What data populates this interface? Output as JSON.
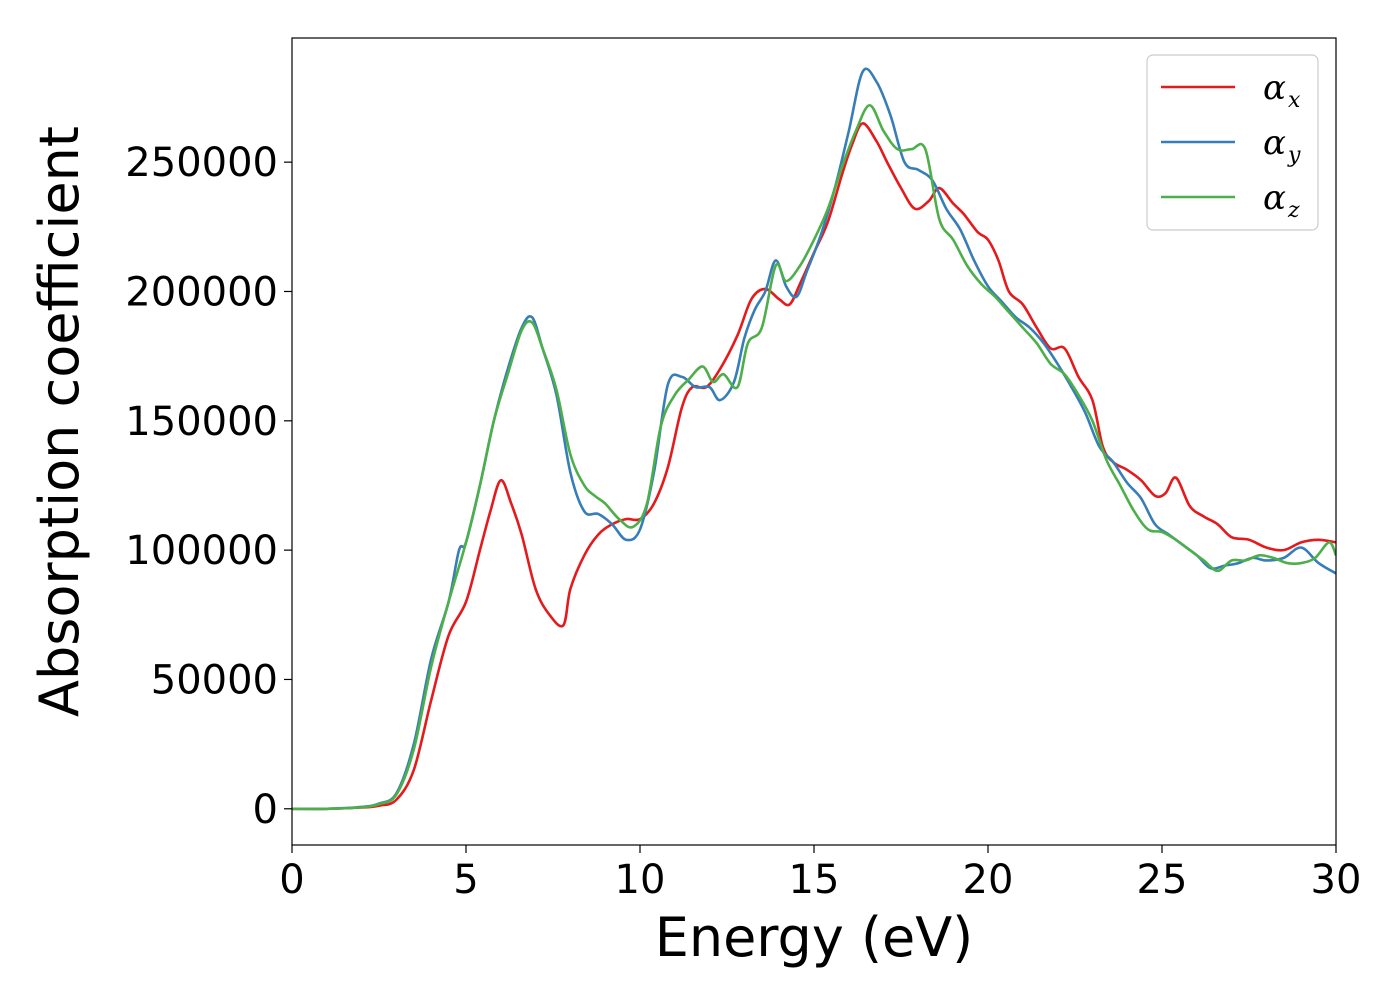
{
  "chart_data": {
    "type": "line",
    "title": "",
    "xlabel": "Energy (eV)",
    "ylabel": "Absorption coefficient",
    "xlim": [
      0,
      30
    ],
    "ylim": [
      -14000,
      298000
    ],
    "xticks": [
      0,
      5,
      10,
      15,
      20,
      25,
      30
    ],
    "yticks": [
      0,
      50000,
      100000,
      150000,
      200000,
      250000
    ],
    "grid": false,
    "legend_position": "top-right",
    "series": [
      {
        "name": "α",
        "subscript": "x",
        "color": "#e41a1c",
        "points": [
          [
            0,
            0
          ],
          [
            1,
            0
          ],
          [
            2,
            500
          ],
          [
            2.5,
            1200
          ],
          [
            3,
            3500
          ],
          [
            3.5,
            15000
          ],
          [
            4,
            42000
          ],
          [
            4.5,
            67000
          ],
          [
            5,
            80000
          ],
          [
            5.4,
            100000
          ],
          [
            5.7,
            115000
          ],
          [
            6,
            127000
          ],
          [
            6.3,
            118000
          ],
          [
            6.6,
            106000
          ],
          [
            7,
            85000
          ],
          [
            7.4,
            75000
          ],
          [
            7.8,
            71000
          ],
          [
            8,
            85000
          ],
          [
            8.4,
            98000
          ],
          [
            8.8,
            106000
          ],
          [
            9.2,
            110000
          ],
          [
            9.6,
            112000
          ],
          [
            10,
            112000
          ],
          [
            10.4,
            118000
          ],
          [
            10.8,
            132000
          ],
          [
            11.2,
            155000
          ],
          [
            11.5,
            163000
          ],
          [
            11.9,
            163000
          ],
          [
            12.3,
            170000
          ],
          [
            12.8,
            183000
          ],
          [
            13.2,
            197000
          ],
          [
            13.6,
            201000
          ],
          [
            14,
            197000
          ],
          [
            14.3,
            195000
          ],
          [
            14.6,
            203000
          ],
          [
            15,
            215000
          ],
          [
            15.4,
            227000
          ],
          [
            15.8,
            245000
          ],
          [
            16.1,
            257000
          ],
          [
            16.4,
            265000
          ],
          [
            16.8,
            258000
          ],
          [
            17.1,
            250000
          ],
          [
            17.5,
            240000
          ],
          [
            17.9,
            232000
          ],
          [
            18.3,
            235000
          ],
          [
            18.6,
            240000
          ],
          [
            19,
            234000
          ],
          [
            19.3,
            230000
          ],
          [
            19.7,
            223000
          ],
          [
            20,
            220000
          ],
          [
            20.3,
            212000
          ],
          [
            20.6,
            200000
          ],
          [
            21,
            195000
          ],
          [
            21.4,
            186000
          ],
          [
            21.8,
            178000
          ],
          [
            22.2,
            178000
          ],
          [
            22.6,
            167000
          ],
          [
            23,
            158000
          ],
          [
            23.3,
            140000
          ],
          [
            23.6,
            134000
          ],
          [
            24,
            131000
          ],
          [
            24.4,
            127000
          ],
          [
            24.8,
            121000
          ],
          [
            25.1,
            122000
          ],
          [
            25.4,
            128000
          ],
          [
            25.8,
            117000
          ],
          [
            26.2,
            113000
          ],
          [
            26.6,
            110000
          ],
          [
            27,
            105000
          ],
          [
            27.5,
            104000
          ],
          [
            28,
            101000
          ],
          [
            28.5,
            100000
          ],
          [
            29,
            103000
          ],
          [
            29.5,
            104000
          ],
          [
            30,
            103000
          ]
        ]
      },
      {
        "name": "α",
        "subscript": "y",
        "color": "#377eb8",
        "points": [
          [
            0,
            0
          ],
          [
            1,
            0
          ],
          [
            2,
            700
          ],
          [
            2.5,
            2000
          ],
          [
            3,
            6000
          ],
          [
            3.5,
            25000
          ],
          [
            4,
            58000
          ],
          [
            4.5,
            80000
          ],
          [
            4.8,
            100000
          ],
          [
            5,
            103000
          ],
          [
            5.4,
            125000
          ],
          [
            5.8,
            150000
          ],
          [
            6.2,
            170000
          ],
          [
            6.6,
            186000
          ],
          [
            6.9,
            190000
          ],
          [
            7.2,
            178000
          ],
          [
            7.6,
            160000
          ],
          [
            8,
            130000
          ],
          [
            8.4,
            115000
          ],
          [
            8.8,
            114000
          ],
          [
            9.2,
            110000
          ],
          [
            9.6,
            104000
          ],
          [
            10,
            108000
          ],
          [
            10.4,
            130000
          ],
          [
            10.8,
            164000
          ],
          [
            11.2,
            167000
          ],
          [
            11.6,
            163000
          ],
          [
            12,
            163000
          ],
          [
            12.3,
            158000
          ],
          [
            12.7,
            165000
          ],
          [
            13,
            182000
          ],
          [
            13.3,
            193000
          ],
          [
            13.6,
            200000
          ],
          [
            13.9,
            212000
          ],
          [
            14.2,
            202000
          ],
          [
            14.5,
            198000
          ],
          [
            14.8,
            208000
          ],
          [
            15.2,
            222000
          ],
          [
            15.6,
            240000
          ],
          [
            16,
            262000
          ],
          [
            16.4,
            285000
          ],
          [
            16.8,
            281000
          ],
          [
            17.2,
            268000
          ],
          [
            17.6,
            250000
          ],
          [
            18,
            247000
          ],
          [
            18.4,
            243000
          ],
          [
            18.8,
            232000
          ],
          [
            19.2,
            224000
          ],
          [
            19.6,
            212000
          ],
          [
            20,
            202000
          ],
          [
            20.4,
            196000
          ],
          [
            20.8,
            190000
          ],
          [
            21.2,
            186000
          ],
          [
            21.6,
            180000
          ],
          [
            22,
            172000
          ],
          [
            22.4,
            163000
          ],
          [
            22.8,
            153000
          ],
          [
            23.2,
            140000
          ],
          [
            23.6,
            134000
          ],
          [
            24,
            126000
          ],
          [
            24.4,
            120000
          ],
          [
            24.8,
            110000
          ],
          [
            25.2,
            106000
          ],
          [
            25.6,
            102000
          ],
          [
            26,
            98000
          ],
          [
            26.4,
            93000
          ],
          [
            26.8,
            94000
          ],
          [
            27.2,
            95000
          ],
          [
            27.6,
            97000
          ],
          [
            28,
            96000
          ],
          [
            28.5,
            97000
          ],
          [
            29,
            101000
          ],
          [
            29.5,
            95000
          ],
          [
            30,
            91000
          ]
        ]
      },
      {
        "name": "α",
        "subscript": "z",
        "color": "#4daf4a",
        "points": [
          [
            0,
            0
          ],
          [
            1,
            0
          ],
          [
            2,
            600
          ],
          [
            2.5,
            1800
          ],
          [
            3,
            5500
          ],
          [
            3.5,
            23000
          ],
          [
            4,
            55000
          ],
          [
            4.5,
            80000
          ],
          [
            5,
            103000
          ],
          [
            5.4,
            125000
          ],
          [
            5.8,
            150000
          ],
          [
            6.2,
            168000
          ],
          [
            6.6,
            185000
          ],
          [
            6.9,
            188000
          ],
          [
            7.2,
            178000
          ],
          [
            7.6,
            162000
          ],
          [
            8,
            137000
          ],
          [
            8.4,
            125000
          ],
          [
            8.7,
            121000
          ],
          [
            9,
            118000
          ],
          [
            9.4,
            112000
          ],
          [
            9.8,
            109000
          ],
          [
            10.2,
            118000
          ],
          [
            10.6,
            148000
          ],
          [
            11,
            160000
          ],
          [
            11.4,
            166000
          ],
          [
            11.8,
            171000
          ],
          [
            12.1,
            165000
          ],
          [
            12.4,
            168000
          ],
          [
            12.8,
            163000
          ],
          [
            13.1,
            180000
          ],
          [
            13.5,
            186000
          ],
          [
            13.9,
            210000
          ],
          [
            14.2,
            204000
          ],
          [
            14.6,
            210000
          ],
          [
            15,
            220000
          ],
          [
            15.4,
            232000
          ],
          [
            15.8,
            248000
          ],
          [
            16.2,
            262000
          ],
          [
            16.6,
            272000
          ],
          [
            17,
            262000
          ],
          [
            17.4,
            255000
          ],
          [
            17.8,
            255000
          ],
          [
            18.2,
            255000
          ],
          [
            18.6,
            228000
          ],
          [
            19,
            220000
          ],
          [
            19.4,
            210000
          ],
          [
            19.8,
            203000
          ],
          [
            20.2,
            198000
          ],
          [
            20.6,
            192000
          ],
          [
            21,
            186000
          ],
          [
            21.4,
            180000
          ],
          [
            21.8,
            172000
          ],
          [
            22.2,
            168000
          ],
          [
            22.6,
            160000
          ],
          [
            23,
            150000
          ],
          [
            23.4,
            135000
          ],
          [
            23.8,
            125000
          ],
          [
            24.2,
            115000
          ],
          [
            24.6,
            108000
          ],
          [
            25,
            107000
          ],
          [
            25.4,
            104000
          ],
          [
            25.8,
            100000
          ],
          [
            26.2,
            96000
          ],
          [
            26.6,
            92000
          ],
          [
            27,
            96000
          ],
          [
            27.4,
            96000
          ],
          [
            27.8,
            98000
          ],
          [
            28.2,
            97000
          ],
          [
            28.6,
            95000
          ],
          [
            29,
            95000
          ],
          [
            29.4,
            97000
          ],
          [
            29.8,
            103000
          ],
          [
            30,
            98000
          ]
        ]
      }
    ]
  }
}
